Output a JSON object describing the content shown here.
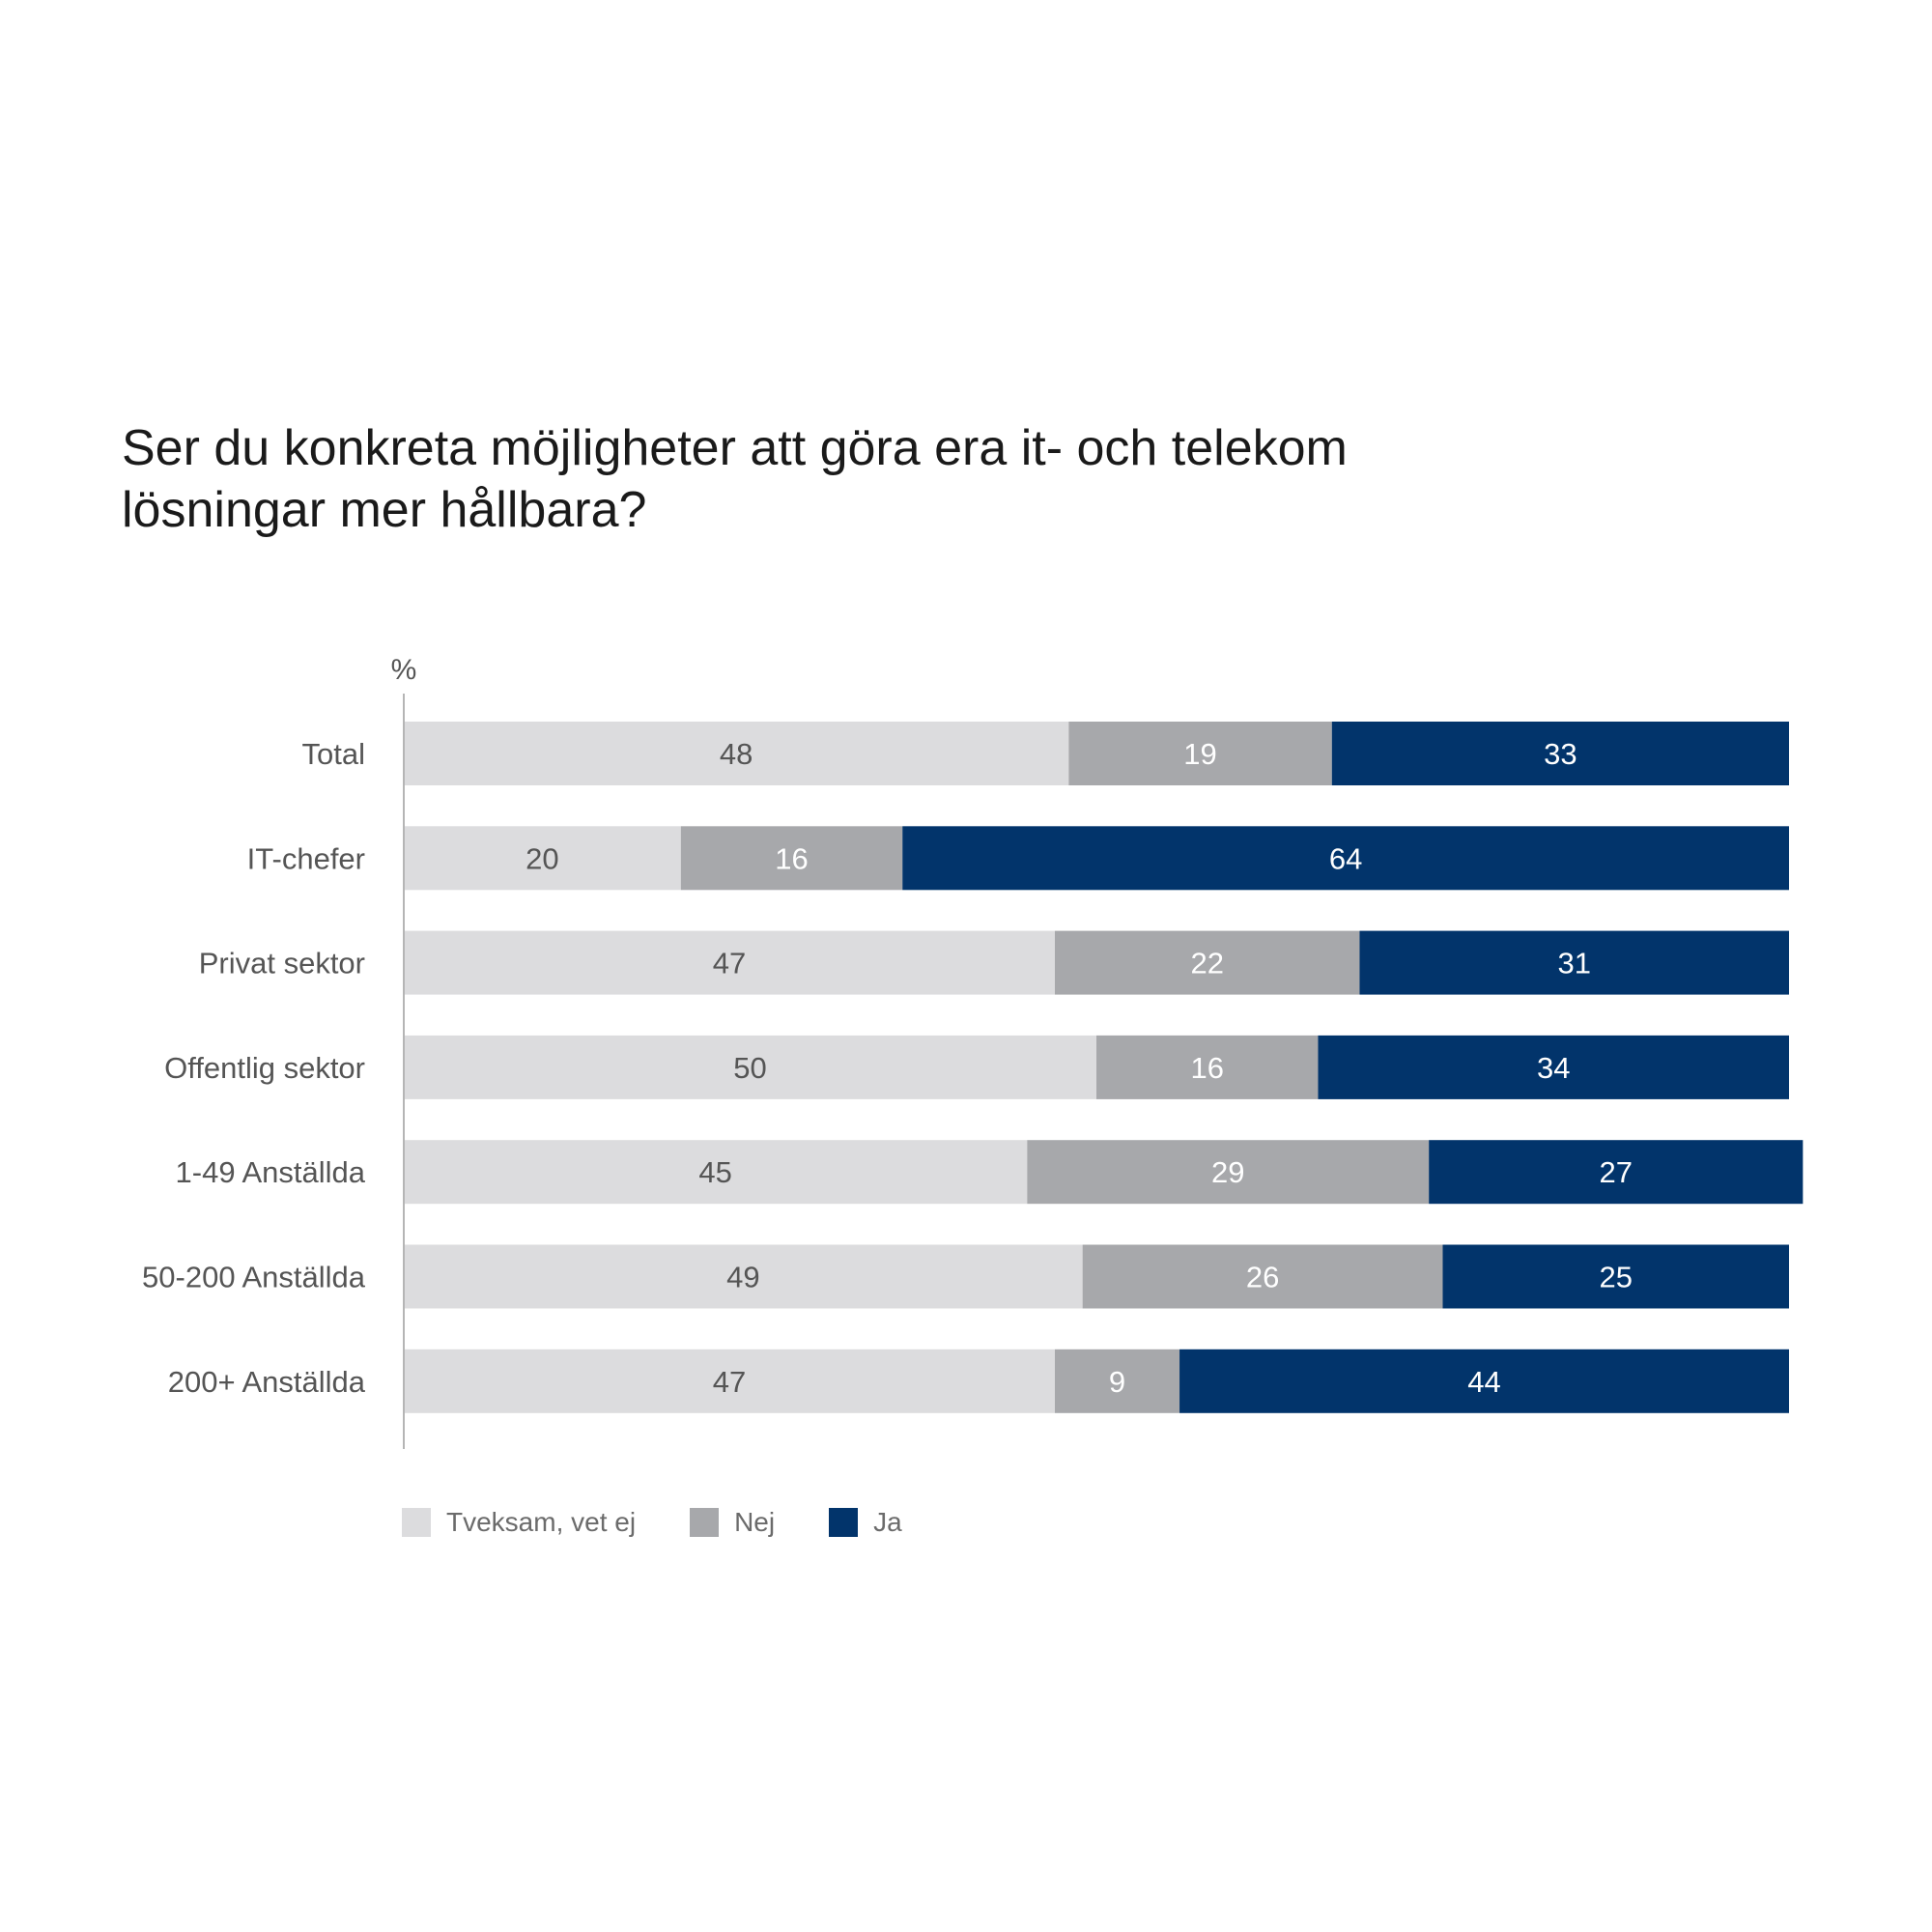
{
  "title": {
    "line1": "Ser du konkreta möjligheter att göra era it- och telekom",
    "line2": "lösningar mer hållbara?"
  },
  "chart_data": {
    "type": "bar",
    "orientation": "horizontal",
    "stacked": true,
    "unit_label": "%",
    "categories": [
      "Total",
      "IT-chefer",
      "Privat sektor",
      "Offentlig sektor",
      "1-49 Anställda",
      "50-200 Anställda",
      "200+ Anställda"
    ],
    "series": [
      {
        "name": "Tveksam, vet ej",
        "color": "#dcdcde",
        "label_color": "#555555",
        "values": [
          48,
          20,
          47,
          50,
          45,
          49,
          47
        ]
      },
      {
        "name": "Nej",
        "color": "#a7a8ab",
        "label_color": "#ffffff",
        "values": [
          19,
          16,
          22,
          16,
          29,
          26,
          9
        ]
      },
      {
        "name": "Ja",
        "color": "#02346b",
        "label_color": "#ffffff",
        "values": [
          33,
          64,
          31,
          34,
          27,
          25,
          44
        ]
      }
    ],
    "xlim": [
      0,
      100
    ],
    "grid": false,
    "legend_position": "bottom-left"
  }
}
